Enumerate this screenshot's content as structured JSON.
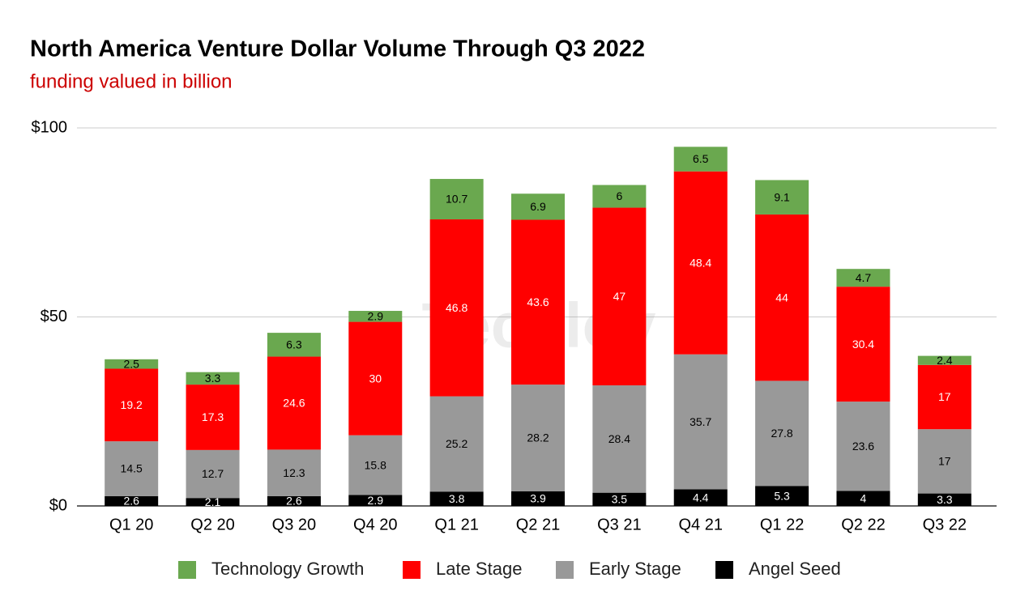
{
  "chart_data": {
    "type": "stacked_bar",
    "title": "North America Venture Dollar Volume Through Q3 2022",
    "subtitle": "funding valued in billion",
    "watermark": "Techloy",
    "categories": [
      "Q1 20",
      "Q2 20",
      "Q3 20",
      "Q4 20",
      "Q1 21",
      "Q2 21",
      "Q3 21",
      "Q4 21",
      "Q1 22",
      "Q2 22",
      "Q3 22"
    ],
    "series": [
      {
        "name": "Angel Seed",
        "color": "#000000",
        "values": [
          2.6,
          2.1,
          2.6,
          2.9,
          3.8,
          3.9,
          3.5,
          4.4,
          5.3,
          4,
          3.3
        ]
      },
      {
        "name": "Early Stage",
        "color": "#999999",
        "values": [
          14.5,
          12.7,
          12.3,
          15.8,
          25.2,
          28.2,
          28.4,
          35.7,
          27.8,
          23.6,
          17
        ]
      },
      {
        "name": "Late Stage",
        "color": "#ff0000",
        "values": [
          19.2,
          17.3,
          24.6,
          30,
          46.8,
          43.6,
          47,
          48.4,
          44,
          30.4,
          17
        ]
      },
      {
        "name": "Technology Growth",
        "color": "#6aa84f",
        "values": [
          2.5,
          3.3,
          6.3,
          2.9,
          10.7,
          6.9,
          6,
          6.5,
          9.1,
          4.7,
          2.4
        ]
      }
    ],
    "ylim": [
      0,
      100
    ],
    "yticks": [
      {
        "value": 0,
        "label": "$0"
      },
      {
        "value": 50,
        "label": "$50"
      },
      {
        "value": 100,
        "label": "$100"
      }
    ],
    "grid": true,
    "legend": "bottom"
  }
}
